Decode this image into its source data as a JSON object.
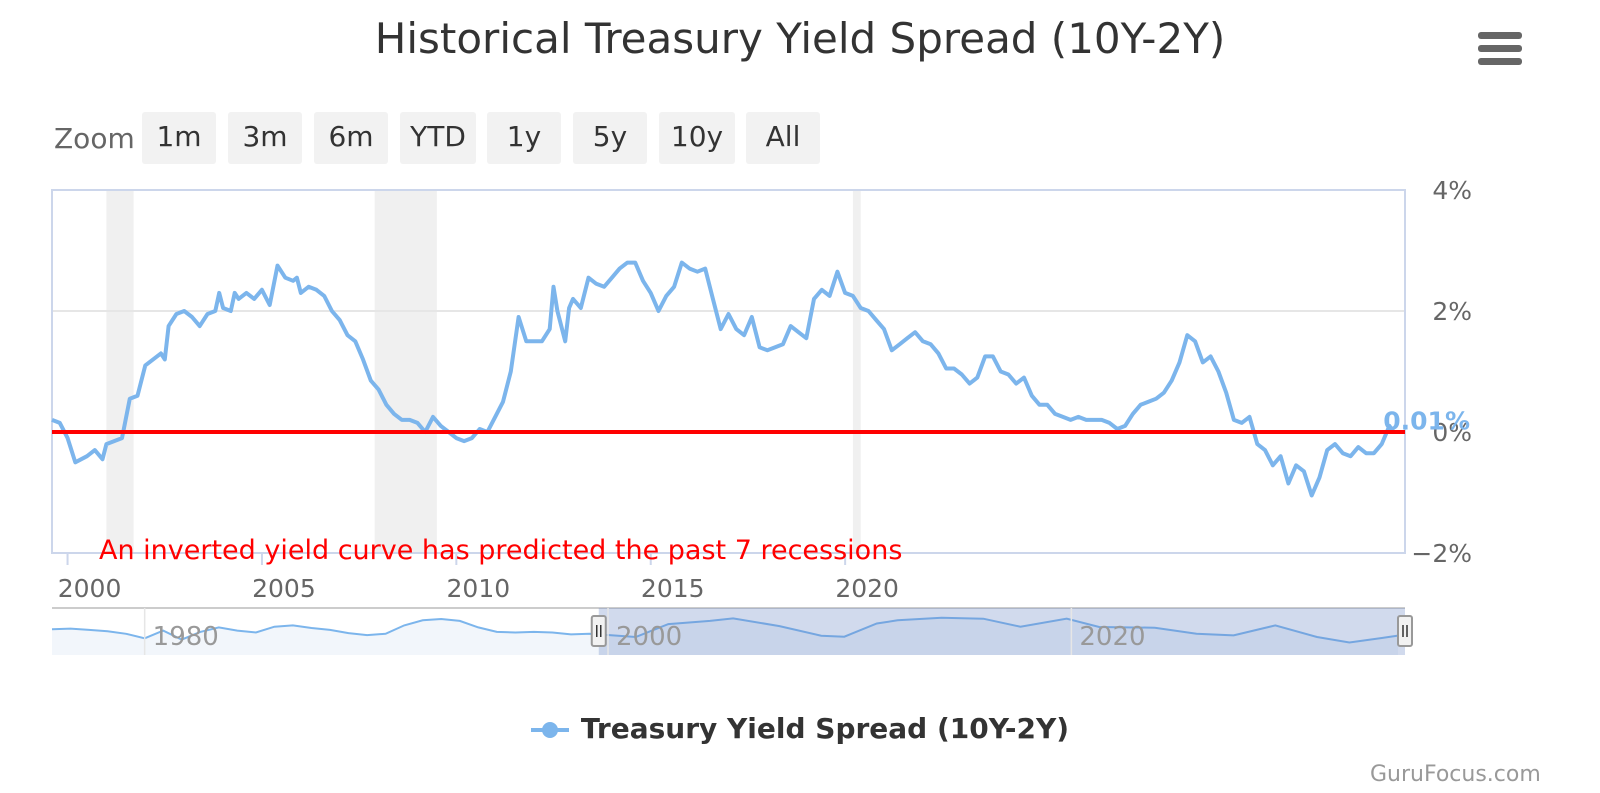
{
  "chart_data": {
    "type": "line",
    "title": "Historical Treasury Yield Spread (10Y-2Y)",
    "series": [
      {
        "name": "Treasury Yield Spread (10Y-2Y)",
        "color": "#7cb5ec",
        "points": [
          [
            1999.6,
            0.2
          ],
          [
            1999.8,
            0.15
          ],
          [
            2000.0,
            -0.1
          ],
          [
            2000.2,
            -0.5
          ],
          [
            2000.5,
            -0.4
          ],
          [
            2000.7,
            -0.3
          ],
          [
            2000.9,
            -0.45
          ],
          [
            2001.0,
            -0.2
          ],
          [
            2001.2,
            -0.15
          ],
          [
            2001.4,
            -0.1
          ],
          [
            2001.6,
            0.55
          ],
          [
            2001.8,
            0.6
          ],
          [
            2002.0,
            1.1
          ],
          [
            2002.2,
            1.2
          ],
          [
            2002.4,
            1.3
          ],
          [
            2002.5,
            1.2
          ],
          [
            2002.6,
            1.75
          ],
          [
            2002.8,
            1.95
          ],
          [
            2003.0,
            2.0
          ],
          [
            2003.2,
            1.9
          ],
          [
            2003.4,
            1.75
          ],
          [
            2003.6,
            1.95
          ],
          [
            2003.8,
            2.0
          ],
          [
            2003.9,
            2.3
          ],
          [
            2004.0,
            2.05
          ],
          [
            2004.2,
            2.0
          ],
          [
            2004.3,
            2.3
          ],
          [
            2004.4,
            2.2
          ],
          [
            2004.6,
            2.3
          ],
          [
            2004.8,
            2.2
          ],
          [
            2005.0,
            2.35
          ],
          [
            2005.2,
            2.1
          ],
          [
            2005.4,
            2.75
          ],
          [
            2005.6,
            2.55
          ],
          [
            2005.8,
            2.5
          ],
          [
            2005.9,
            2.55
          ],
          [
            2006.0,
            2.3
          ],
          [
            2006.2,
            2.4
          ],
          [
            2006.4,
            2.35
          ],
          [
            2006.6,
            2.25
          ],
          [
            2006.8,
            2.0
          ],
          [
            2007.0,
            1.85
          ],
          [
            2007.2,
            1.6
          ],
          [
            2007.4,
            1.5
          ],
          [
            2007.6,
            1.2
          ],
          [
            2007.8,
            0.85
          ],
          [
            2008.0,
            0.7
          ],
          [
            2008.2,
            0.45
          ],
          [
            2008.4,
            0.3
          ],
          [
            2008.6,
            0.2
          ],
          [
            2008.8,
            0.2
          ],
          [
            2009.0,
            0.15
          ],
          [
            2009.2,
            0.0
          ],
          [
            2009.4,
            0.25
          ],
          [
            2009.6,
            0.1
          ],
          [
            2009.8,
            0.0
          ],
          [
            2010.0,
            -0.1
          ],
          [
            2010.2,
            -0.15
          ],
          [
            2010.4,
            -0.1
          ],
          [
            2010.6,
            0.05
          ],
          [
            2010.8,
            0.0
          ],
          [
            2011.0,
            0.25
          ],
          [
            2011.2,
            0.5
          ],
          [
            2011.4,
            1.0
          ],
          [
            2011.6,
            1.9
          ],
          [
            2011.8,
            1.5
          ],
          [
            2012.0,
            1.5
          ],
          [
            2012.2,
            1.5
          ],
          [
            2012.4,
            1.7
          ],
          [
            2012.5,
            2.4
          ],
          [
            2012.6,
            2.0
          ],
          [
            2012.8,
            1.5
          ],
          [
            2012.9,
            2.05
          ],
          [
            2013.0,
            2.2
          ],
          [
            2013.2,
            2.05
          ],
          [
            2013.4,
            2.55
          ],
          [
            2013.6,
            2.45
          ],
          [
            2013.8,
            2.4
          ],
          [
            2014.0,
            2.55
          ],
          [
            2014.2,
            2.7
          ],
          [
            2014.4,
            2.8
          ],
          [
            2014.6,
            2.8
          ],
          [
            2014.8,
            2.5
          ],
          [
            2015.0,
            2.3
          ],
          [
            2015.2,
            2.0
          ],
          [
            2015.4,
            2.25
          ],
          [
            2015.6,
            2.4
          ],
          [
            2015.8,
            2.8
          ],
          [
            2016.0,
            2.7
          ],
          [
            2016.2,
            2.65
          ],
          [
            2016.4,
            2.7
          ],
          [
            2016.6,
            2.2
          ],
          [
            2016.8,
            1.7
          ],
          [
            2017.0,
            1.95
          ],
          [
            2017.2,
            1.7
          ],
          [
            2017.4,
            1.6
          ],
          [
            2017.6,
            1.9
          ],
          [
            2017.8,
            1.4
          ],
          [
            2018.0,
            1.35
          ],
          [
            2018.2,
            1.4
          ],
          [
            2018.4,
            1.45
          ],
          [
            2018.6,
            1.75
          ],
          [
            2018.8,
            1.65
          ],
          [
            2019.0,
            1.55
          ],
          [
            2019.2,
            2.2
          ],
          [
            2019.4,
            2.35
          ],
          [
            2019.6,
            2.25
          ],
          [
            2019.8,
            2.65
          ],
          [
            2020.0,
            2.3
          ],
          [
            2020.2,
            2.25
          ],
          [
            2020.4,
            2.05
          ],
          [
            2020.6,
            2.0
          ],
          [
            2020.8,
            1.85
          ],
          [
            2021.0,
            1.7
          ],
          [
            2021.2,
            1.35
          ],
          [
            2021.4,
            1.45
          ],
          [
            2021.6,
            1.55
          ],
          [
            2021.8,
            1.65
          ],
          [
            2022.0,
            1.5
          ],
          [
            2022.2,
            1.45
          ],
          [
            2022.4,
            1.3
          ],
          [
            2022.6,
            1.05
          ],
          [
            2022.8,
            1.05
          ],
          [
            2023.0,
            0.95
          ],
          [
            2023.2,
            0.8
          ],
          [
            2023.4,
            0.9
          ],
          [
            2023.6,
            1.25
          ],
          [
            2023.8,
            1.25
          ],
          [
            2024.0,
            1.0
          ],
          [
            2024.2,
            0.95
          ],
          [
            2024.4,
            0.8
          ],
          [
            2024.6,
            0.9
          ],
          [
            2024.8,
            0.6
          ],
          [
            2025.0,
            0.45
          ],
          [
            2025.2,
            0.45
          ],
          [
            2025.4,
            0.3
          ],
          [
            2025.6,
            0.25
          ],
          [
            2025.8,
            0.2
          ],
          [
            2026.0,
            0.25
          ],
          [
            2026.2,
            0.2
          ],
          [
            2026.4,
            0.2
          ],
          [
            2026.6,
            0.2
          ],
          [
            2026.8,
            0.15
          ],
          [
            2027.0,
            0.05
          ],
          [
            2027.2,
            0.1
          ],
          [
            2027.4,
            0.3
          ],
          [
            2027.6,
            0.45
          ],
          [
            2027.8,
            0.5
          ],
          [
            2028.0,
            0.55
          ],
          [
            2028.2,
            0.65
          ],
          [
            2028.4,
            0.85
          ],
          [
            2028.6,
            1.15
          ],
          [
            2028.8,
            1.6
          ],
          [
            2029.0,
            1.5
          ],
          [
            2029.2,
            1.15
          ],
          [
            2029.4,
            1.25
          ],
          [
            2029.6,
            1.0
          ],
          [
            2029.8,
            0.65
          ],
          [
            2030.0,
            0.2
          ],
          [
            2030.2,
            0.15
          ],
          [
            2030.4,
            0.25
          ],
          [
            2030.6,
            -0.2
          ],
          [
            2030.8,
            -0.3
          ],
          [
            2031.0,
            -0.55
          ],
          [
            2031.2,
            -0.4
          ],
          [
            2031.4,
            -0.85
          ],
          [
            2031.6,
            -0.55
          ],
          [
            2031.8,
            -0.65
          ],
          [
            2032.0,
            -1.05
          ],
          [
            2032.2,
            -0.75
          ],
          [
            2032.4,
            -0.3
          ],
          [
            2032.6,
            -0.2
          ],
          [
            2032.8,
            -0.35
          ],
          [
            2033.0,
            -0.4
          ],
          [
            2033.2,
            -0.25
          ],
          [
            2033.4,
            -0.35
          ],
          [
            2033.6,
            -0.35
          ],
          [
            2033.8,
            -0.2
          ],
          [
            2034.0,
            0.1
          ],
          [
            2034.1,
            0.01
          ]
        ]
      }
    ],
    "reference_line": {
      "value": 0,
      "color": "#ff0000"
    },
    "recession_bands": [
      [
        2001.0,
        2001.7
      ],
      [
        2007.9,
        2009.5
      ],
      [
        2020.2,
        2020.4
      ]
    ],
    "xlim": [
      1999.6,
      2034.4
    ],
    "ylim": [
      -2,
      4
    ],
    "x_ticks": [
      {
        "value": 2000,
        "label": "2000"
      },
      {
        "value": 2005,
        "label": "2005"
      },
      {
        "value": 2010,
        "label": "2010"
      },
      {
        "value": 2015,
        "label": "2015"
      },
      {
        "value": 2020,
        "label": "2020"
      }
    ],
    "y_ticks": [
      {
        "value": 4,
        "label": "4%"
      },
      {
        "value": 2,
        "label": "2%"
      },
      {
        "value": 0,
        "label": "0%"
      },
      {
        "value": -2,
        "label": "−2%"
      }
    ],
    "annotation": "An inverted yield curve has predicted the past 7 recessions",
    "last_value_label": "0.01%",
    "grid": true,
    "legend_position": "bottom-center",
    "navigator": {
      "xlim": [
        1976.0,
        2034.4
      ],
      "ticks": [
        {
          "value": 1980,
          "label": "1980"
        },
        {
          "value": 2000,
          "label": "2000"
        },
        {
          "value": 2020,
          "label": "2020"
        }
      ],
      "selected_range": [
        1999.6,
        2034.4
      ],
      "points": [
        [
          1976.0,
          1.0
        ],
        [
          1976.8,
          1.1
        ],
        [
          1977.6,
          0.9
        ],
        [
          1978.4,
          0.7
        ],
        [
          1979.2,
          0.3
        ],
        [
          1980.0,
          -0.4
        ],
        [
          1980.8,
          0.8
        ],
        [
          1981.6,
          -0.6
        ],
        [
          1982.4,
          0.6
        ],
        [
          1983.2,
          1.3
        ],
        [
          1984.0,
          0.8
        ],
        [
          1984.8,
          0.5
        ],
        [
          1985.6,
          1.4
        ],
        [
          1986.4,
          1.6
        ],
        [
          1987.2,
          1.2
        ],
        [
          1988.0,
          0.9
        ],
        [
          1988.8,
          0.4
        ],
        [
          1989.6,
          0.1
        ],
        [
          1990.4,
          0.3
        ],
        [
          1991.2,
          1.6
        ],
        [
          1992.0,
          2.4
        ],
        [
          1992.8,
          2.6
        ],
        [
          1993.6,
          2.3
        ],
        [
          1994.4,
          1.3
        ],
        [
          1995.2,
          0.6
        ],
        [
          1996.0,
          0.5
        ],
        [
          1996.8,
          0.6
        ],
        [
          1997.6,
          0.5
        ],
        [
          1998.4,
          0.2
        ],
        [
          1999.2,
          0.3
        ],
        [
          1999.6,
          0.2
        ],
        [
          2001.2,
          -0.2
        ],
        [
          2002.6,
          1.8
        ],
        [
          2004.4,
          2.3
        ],
        [
          2005.4,
          2.7
        ],
        [
          2007.4,
          1.5
        ],
        [
          2009.2,
          0.0
        ],
        [
          2010.2,
          -0.15
        ],
        [
          2011.6,
          1.9
        ],
        [
          2012.5,
          2.4
        ],
        [
          2014.4,
          2.8
        ],
        [
          2016.2,
          2.65
        ],
        [
          2017.8,
          1.4
        ],
        [
          2019.8,
          2.65
        ],
        [
          2021.2,
          1.35
        ],
        [
          2023.6,
          1.25
        ],
        [
          2025.4,
          0.3
        ],
        [
          2027.0,
          0.05
        ],
        [
          2028.8,
          1.6
        ],
        [
          2030.6,
          -0.2
        ],
        [
          2032.0,
          -1.05
        ],
        [
          2033.4,
          -0.35
        ],
        [
          2034.1,
          0.01
        ]
      ]
    }
  },
  "toolbar": {
    "zoom_label": "Zoom",
    "buttons": [
      "1m",
      "3m",
      "6m",
      "YTD",
      "1y",
      "5y",
      "10y",
      "All"
    ]
  },
  "credit": "GuruFocus.com",
  "icons": {
    "menu": "hamburger-menu-icon"
  }
}
